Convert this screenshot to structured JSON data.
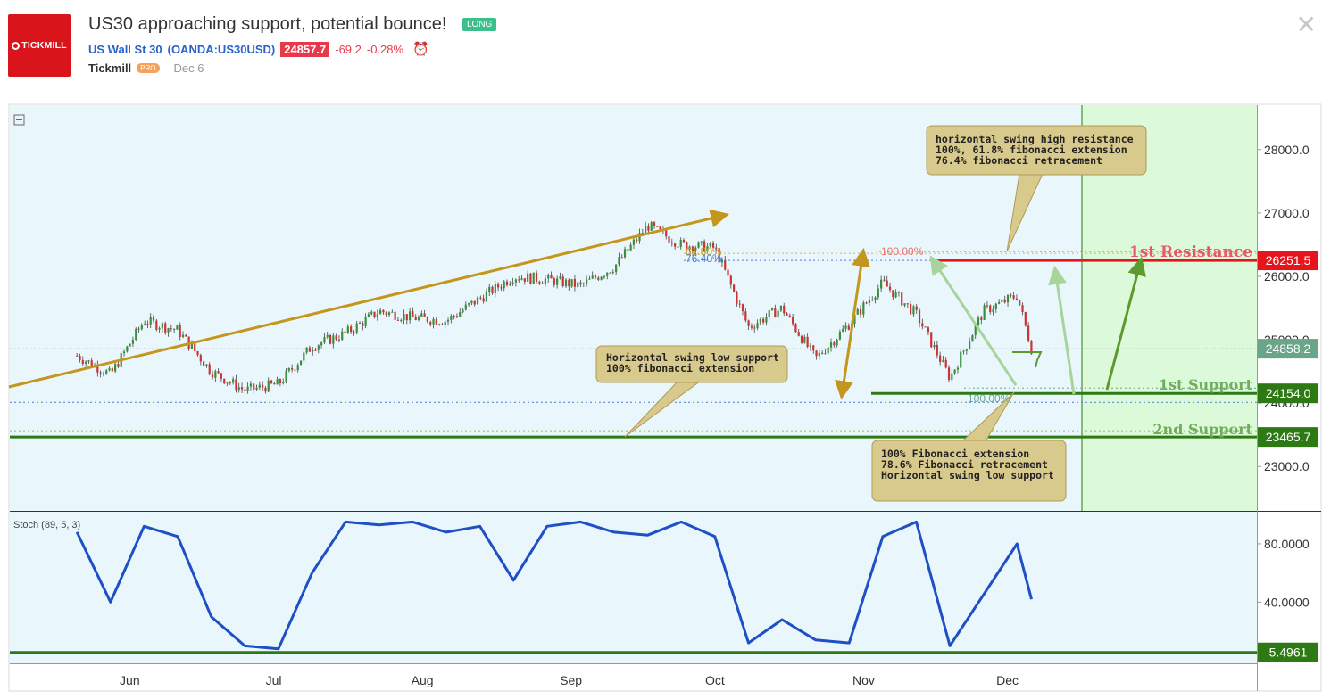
{
  "header": {
    "logo_text": "TICKMILL",
    "title": "US30 approaching support, potential bounce!",
    "badge": "LONG",
    "symbol_name": "US Wall St 30",
    "symbol_code": "(OANDA:US30USD)",
    "price": "24857.7",
    "change": "-69.2",
    "change_pct": "-0.28%",
    "author": "Tickmill",
    "author_badge": "PRO",
    "date": "Dec 6",
    "close_icon": "close-icon",
    "alarm_icon": "alarm-clock-icon"
  },
  "chart_data": {
    "type": "candlestick",
    "instrument": "US Wall St 30 (OANDA:US30USD)",
    "x_labels": [
      "Jun",
      "Jul",
      "Aug",
      "Sep",
      "Oct",
      "Nov",
      "Dec"
    ],
    "price_axis": {
      "ticks": [
        23000,
        24000,
        25000,
        26000,
        27000,
        28000
      ],
      "tick_labels": [
        "23000.0",
        "24000.0",
        "25000.0",
        "26000.0",
        "27000.0",
        "28000.0"
      ],
      "ylim": [
        22300,
        28700
      ]
    },
    "close_series": {
      "x": [
        "2018-05-21",
        "2018-05-28",
        "2018-06-04",
        "2018-06-11",
        "2018-06-18",
        "2018-06-25",
        "2018-07-02",
        "2018-07-09",
        "2018-07-16",
        "2018-07-23",
        "2018-07-30",
        "2018-08-06",
        "2018-08-13",
        "2018-08-20",
        "2018-08-27",
        "2018-09-03",
        "2018-09-10",
        "2018-09-17",
        "2018-09-24",
        "2018-10-01",
        "2018-10-08",
        "2018-10-15",
        "2018-10-22",
        "2018-10-29",
        "2018-11-05",
        "2018-11-12",
        "2018-11-19",
        "2018-11-26",
        "2018-12-03",
        "2018-12-06"
      ],
      "close": [
        24750,
        24450,
        25300,
        25150,
        24500,
        24200,
        24300,
        24900,
        25100,
        25450,
        25350,
        25300,
        25650,
        26000,
        25950,
        25850,
        26150,
        26800,
        26500,
        26450,
        25200,
        25500,
        24700,
        25250,
        25900,
        25400,
        24400,
        25450,
        25700,
        24857.7
      ]
    },
    "price_lines": [
      {
        "label": "1st Resistance",
        "value": 26251.5,
        "value_label": "26251.5",
        "color": "#e8141b"
      },
      {
        "label": "1st Support",
        "value": 24154.0,
        "value_label": "24154.0",
        "color": "#2d7a14"
      },
      {
        "label": "2nd Support",
        "value": 23465.7,
        "value_label": "23465.7",
        "color": "#2d7a14"
      },
      {
        "label": "",
        "value": 24858.2,
        "value_label": "24858.2",
        "color": "#6aa58a"
      }
    ],
    "fibonacci_labels": [
      "61.80%",
      "76.40%",
      "100.00%",
      "100.00%"
    ],
    "annotations": [
      {
        "id": "resistance-note",
        "lines": [
          "horizontal swing high resistance",
          "100%, 61.8% fibonacci extension",
          "76.4% fibonacci retracement"
        ]
      },
      {
        "id": "swing-low-note",
        "lines": [
          "Horizontal swing low support",
          "100% fibonacci extension"
        ]
      },
      {
        "id": "support-note",
        "lines": [
          "100% Fibonacci extension",
          "78.6% Fibonacci retracement",
          "Horizontal swing low support"
        ]
      }
    ],
    "indicator": {
      "name": "Stoch (89, 5, 3)",
      "ticks": [
        40,
        80
      ],
      "tick_labels": [
        "40.0000",
        "80.0000"
      ],
      "ylim": [
        -2,
        102
      ],
      "level": {
        "value": 5.4961,
        "value_label": "5.4961"
      },
      "color": "#1e4fc4",
      "x": [
        "2018-05-21",
        "2018-05-28",
        "2018-06-04",
        "2018-06-11",
        "2018-06-18",
        "2018-06-25",
        "2018-07-02",
        "2018-07-09",
        "2018-07-16",
        "2018-07-23",
        "2018-07-30",
        "2018-08-06",
        "2018-08-13",
        "2018-08-20",
        "2018-08-27",
        "2018-09-03",
        "2018-09-10",
        "2018-09-17",
        "2018-09-24",
        "2018-10-01",
        "2018-10-08",
        "2018-10-15",
        "2018-10-22",
        "2018-10-29",
        "2018-11-05",
        "2018-11-12",
        "2018-11-19",
        "2018-11-26",
        "2018-12-03",
        "2018-12-06"
      ],
      "values": [
        88,
        40,
        92,
        85,
        30,
        10,
        8,
        60,
        95,
        93,
        95,
        88,
        92,
        55,
        92,
        95,
        88,
        86,
        95,
        85,
        12,
        28,
        14,
        12,
        85,
        95,
        10,
        45,
        80,
        42
      ]
    }
  }
}
